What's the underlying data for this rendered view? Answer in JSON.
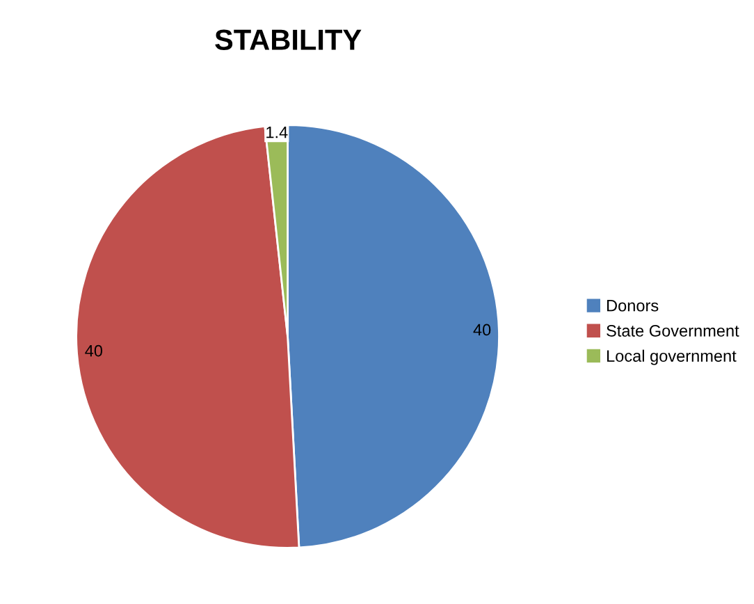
{
  "chart_data": {
    "type": "pie",
    "title": "STABILITY",
    "categories": [
      "Donors",
      "State Government",
      "Local government"
    ],
    "values": [
      40,
      40,
      1.4
    ],
    "colors": [
      "#4f81bd",
      "#c0504d",
      "#9bbb59"
    ],
    "data_labels": true,
    "legend": "right"
  }
}
